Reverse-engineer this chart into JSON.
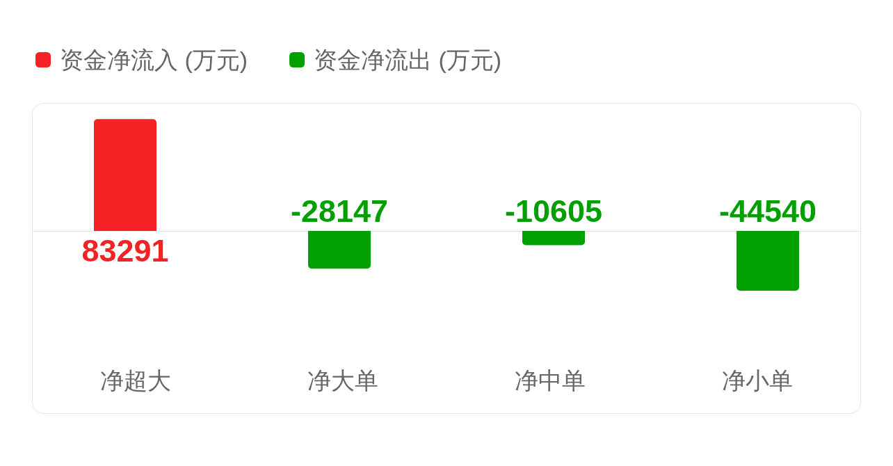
{
  "chart_data": {
    "type": "bar",
    "categories": [
      "净超大",
      "净大单",
      "净中单",
      "净小单"
    ],
    "series": [
      {
        "name": "资金净流入 (万元)",
        "color": "#f42224",
        "values": [
          83291,
          null,
          null,
          null
        ]
      },
      {
        "name": "资金净流出 (万元)",
        "color": "#00a000",
        "values": [
          null,
          -28147,
          -10605,
          -44540
        ]
      }
    ],
    "stacked": true,
    "data_labels": true,
    "legend": "top left",
    "tick_labels": "x"
  }
}
